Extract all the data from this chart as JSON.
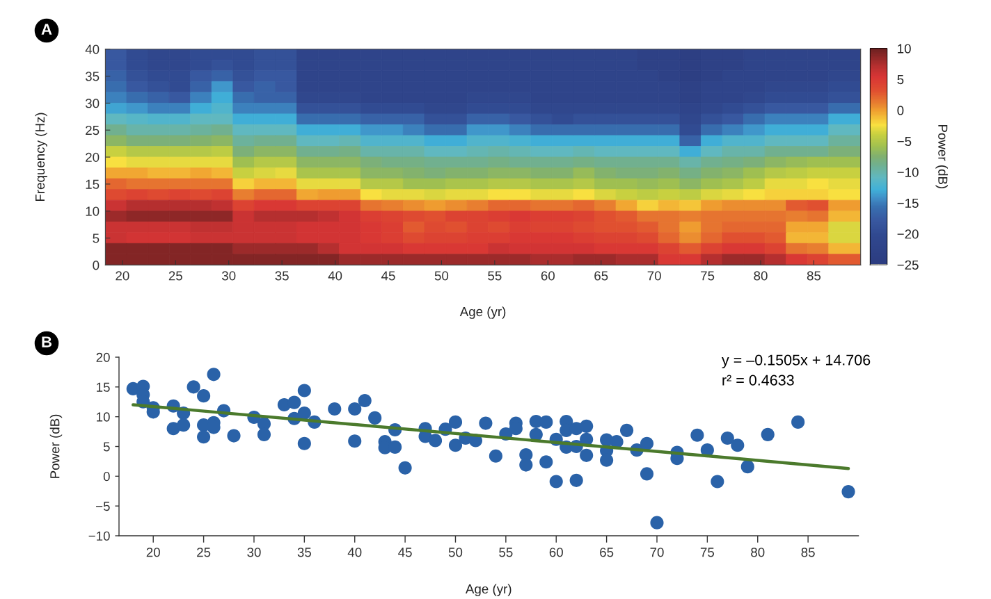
{
  "chart_data": [
    {
      "type": "heatmap",
      "title": "A",
      "xlabel": "Age (yr)",
      "ylabel": "Frequency (Hz)",
      "clabel": "Power (dB)",
      "x": [
        19.4,
        21.4,
        23.4,
        25.4,
        27.4,
        29.4,
        31.4,
        33.4,
        35.4,
        37.4,
        39.4,
        41.4,
        43.4,
        45.4,
        47.4,
        49.4,
        51.4,
        53.4,
        55.4,
        57.4,
        59.4,
        61.4,
        63.4,
        65.4,
        67.4,
        69.4,
        71.4,
        73.4,
        75.4,
        77.4,
        79.4,
        81.4,
        83.4,
        85.4,
        87.9
      ],
      "xlim": [
        18.4,
        89.4
      ],
      "xticks": [
        20,
        25,
        30,
        35,
        40,
        45,
        50,
        55,
        60,
        65,
        70,
        75,
        80,
        85
      ],
      "ylim": [
        0,
        40
      ],
      "yticks": [
        0,
        5,
        10,
        15,
        20,
        25,
        30,
        35,
        40
      ],
      "clim": [
        -25,
        10
      ],
      "cticks": [
        10,
        5,
        0,
        -5,
        -10,
        -15,
        -20,
        -25
      ],
      "cells": [
        [
          -18,
          -20,
          -21,
          -21,
          -20,
          -20,
          -20,
          -19,
          -19,
          -22,
          -22,
          -22,
          -22,
          -22,
          -22,
          -22,
          -22,
          -22,
          -22,
          -22,
          -22,
          -22,
          -22,
          -22,
          -22,
          -23,
          -23,
          -24,
          -23,
          -23,
          -22,
          -22,
          -22,
          -22,
          -22
        ],
        [
          -18,
          -20,
          -21,
          -21,
          -20,
          -19,
          -20,
          -19,
          -19,
          -22,
          -22,
          -22,
          -22,
          -22,
          -22,
          -22,
          -22,
          -22,
          -22,
          -22,
          -22,
          -22,
          -22,
          -22,
          -22,
          -23,
          -23,
          -24,
          -23,
          -23,
          -22,
          -22,
          -22,
          -22,
          -22
        ],
        [
          -17,
          -19,
          -20,
          -20,
          -18,
          -17,
          -19,
          -18,
          -18,
          -22,
          -22,
          -22,
          -22,
          -22,
          -22,
          -22,
          -22,
          -22,
          -22,
          -22,
          -22,
          -22,
          -22,
          -22,
          -22,
          -22,
          -23,
          -24,
          -23,
          -22,
          -22,
          -22,
          -22,
          -22,
          -21
        ],
        [
          -16,
          -18,
          -19,
          -20,
          -17,
          -14,
          -18,
          -17,
          -18,
          -22,
          -22,
          -22,
          -22,
          -22,
          -22,
          -22,
          -22,
          -22,
          -22,
          -22,
          -22,
          -22,
          -22,
          -22,
          -22,
          -22,
          -22,
          -23,
          -22,
          -22,
          -22,
          -21,
          -21,
          -21,
          -20
        ],
        [
          -15,
          -16,
          -17,
          -18,
          -15,
          -13,
          -16,
          -17,
          -17,
          -21,
          -21,
          -21,
          -22,
          -22,
          -22,
          -22,
          -22,
          -21,
          -21,
          -21,
          -22,
          -22,
          -22,
          -22,
          -22,
          -22,
          -22,
          -23,
          -22,
          -22,
          -21,
          -20,
          -20,
          -20,
          -19
        ],
        [
          -13.5,
          -14,
          -15,
          -15,
          -13,
          -12,
          -15,
          -15,
          -15,
          -19,
          -19,
          -19,
          -20,
          -20,
          -20,
          -21,
          -21,
          -20,
          -20,
          -20,
          -21,
          -21,
          -21,
          -21,
          -21,
          -21,
          -21,
          -22,
          -21,
          -20,
          -19,
          -18,
          -18,
          -18,
          -16
        ],
        [
          -11,
          -11.5,
          -12,
          -12,
          -11,
          -11,
          -13,
          -13,
          -13,
          -16,
          -16,
          -16,
          -17,
          -17,
          -17,
          -19,
          -19,
          -17,
          -17,
          -18,
          -19,
          -20,
          -19,
          -19,
          -19,
          -19,
          -19,
          -21,
          -19,
          -18,
          -16,
          -15,
          -15,
          -15,
          -13
        ],
        [
          -9,
          -10,
          -10,
          -10,
          -9.5,
          -9,
          -11,
          -11,
          -11,
          -13,
          -13,
          -13,
          -14,
          -14,
          -15,
          -16,
          -16,
          -14,
          -14,
          -15,
          -16,
          -16,
          -16,
          -16,
          -16,
          -16,
          -16,
          -20,
          -16,
          -15,
          -14,
          -13,
          -13,
          -13,
          -11
        ],
        [
          -7,
          -8,
          -8,
          -8,
          -7.5,
          -7,
          -9.5,
          -9,
          -9,
          -11,
          -11,
          -10.5,
          -12,
          -12,
          -12,
          -13,
          -13,
          -12,
          -12,
          -12.5,
          -13,
          -13,
          -13,
          -13,
          -13,
          -13,
          -13,
          -17,
          -13,
          -12,
          -12,
          -11,
          -11,
          -11,
          -9.5
        ],
        [
          -4,
          -5,
          -5,
          -5,
          -5,
          -4.5,
          -8,
          -7,
          -7,
          -9,
          -9,
          -8.5,
          -10,
          -10,
          -10,
          -11,
          -11,
          -10.5,
          -10,
          -10.5,
          -11,
          -11,
          -10.5,
          -11,
          -11,
          -11,
          -11,
          -13,
          -11,
          -10,
          -10,
          -9,
          -9,
          -9,
          -8
        ],
        [
          -2.5,
          -3,
          -3,
          -3,
          -3,
          -3,
          -6,
          -5,
          -5,
          -7,
          -7,
          -7,
          -8,
          -8.5,
          -8.5,
          -9,
          -9,
          -9,
          -8.5,
          -9,
          -9,
          -9,
          -8.5,
          -9,
          -9,
          -9,
          -9,
          -10,
          -9,
          -8.5,
          -8,
          -7,
          -6.5,
          -6,
          -6
        ],
        [
          -0.5,
          -0.5,
          -1,
          -1,
          -0.5,
          -1,
          -4,
          -3.5,
          -3,
          -5.5,
          -5.5,
          -5.5,
          -7,
          -7,
          -7.5,
          -8,
          -7.5,
          -7.5,
          -7,
          -7,
          -7.5,
          -7.5,
          -6.5,
          -7.5,
          -8,
          -8,
          -7.5,
          -8.5,
          -7.5,
          -7,
          -6,
          -5,
          -4.5,
          -4,
          -4
        ],
        [
          2,
          1.5,
          1.5,
          1.5,
          1.5,
          1.5,
          -2,
          -1,
          -1,
          -3,
          -3,
          -3,
          -5,
          -5,
          -6,
          -6,
          -5.5,
          -5.5,
          -5,
          -5,
          -5.5,
          -5.5,
          -5,
          -6,
          -6,
          -6.5,
          -6,
          -7,
          -6,
          -5.5,
          -4.5,
          -3,
          -3,
          -2.5,
          -3
        ],
        [
          3.5,
          4,
          3.5,
          4,
          3.5,
          4,
          1,
          2,
          2,
          -0.5,
          0,
          0,
          -2.5,
          -3,
          -3,
          -3.5,
          -3,
          -3,
          -2.5,
          -2.5,
          -3,
          -3,
          -2.5,
          -3.5,
          -4,
          -4.5,
          -4,
          -4.5,
          -3.5,
          -3,
          -2.5,
          -2,
          -2,
          -2,
          -2.5
        ],
        [
          6,
          7,
          7,
          7,
          7,
          6.5,
          4,
          5,
          5,
          4,
          4,
          4,
          1.5,
          1,
          0.5,
          0,
          0.5,
          1,
          2,
          2,
          1.5,
          1.5,
          2,
          1,
          -0.5,
          -2,
          -1,
          -1.5,
          0,
          0.5,
          0.5,
          0.5,
          2.5,
          3,
          0
        ],
        [
          8,
          8.5,
          8.5,
          8.5,
          8.5,
          8.5,
          6,
          7,
          7,
          7,
          6.5,
          5.5,
          4.5,
          4,
          3.5,
          3,
          4,
          4,
          4.5,
          5,
          4.5,
          4.5,
          4,
          3,
          2.5,
          1.5,
          1.5,
          1,
          1.5,
          1.5,
          1.5,
          1.5,
          1,
          1.5,
          -1
        ],
        [
          6,
          6,
          6,
          6,
          6.5,
          6.5,
          6,
          6,
          6,
          5.5,
          5.5,
          5.5,
          5,
          4.5,
          2.5,
          3.5,
          3,
          4,
          3.5,
          4.5,
          4,
          4,
          3.5,
          3,
          3,
          2.5,
          1.5,
          0,
          1.5,
          2,
          2,
          2,
          -0.5,
          -0.5,
          -3.5
        ],
        [
          6,
          5.5,
          5.5,
          5.5,
          6,
          6,
          6,
          6,
          6,
          5.5,
          5.5,
          5.5,
          5,
          4.5,
          3.5,
          4,
          4,
          4.5,
          4.5,
          5,
          5,
          5,
          4.5,
          4,
          4,
          3.5,
          2,
          0.5,
          2,
          3,
          3,
          2.5,
          -1,
          -1,
          -3.5
        ],
        [
          9,
          9,
          9,
          9,
          9,
          9,
          8,
          8,
          8,
          8,
          7,
          5.5,
          5.5,
          5.5,
          5,
          5,
          5,
          5,
          6,
          5.5,
          5.5,
          5.5,
          5.5,
          5,
          5,
          5,
          4,
          2.5,
          4,
          5,
          5,
          4,
          1.5,
          1,
          -1
        ],
        [
          9,
          9,
          9,
          9,
          9,
          9,
          9,
          9,
          9,
          9,
          9,
          8,
          8,
          8,
          8,
          8,
          8,
          8,
          8,
          8,
          7.5,
          7.5,
          8,
          8,
          7.5,
          7.5,
          5,
          5,
          7,
          8,
          8,
          7,
          5,
          4,
          2.5
        ]
      ]
    },
    {
      "type": "scatter",
      "title": "B",
      "xlabel": "Age (yr)",
      "ylabel": "Power (dB)",
      "xlim": [
        16.6,
        90
      ],
      "xticks": [
        20,
        25,
        30,
        35,
        40,
        45,
        50,
        55,
        60,
        65,
        70,
        75,
        80,
        85
      ],
      "ylim": [
        -10,
        20
      ],
      "yticks": [
        -10,
        -5,
        0,
        5,
        10,
        15,
        20
      ],
      "annotations": [
        "y = –0.1505x + 14.706",
        "r² = 0.4633"
      ],
      "series": [
        {
          "type": "scatter",
          "color": "#2a62a8",
          "marker": "circle",
          "x": [
            18,
            19,
            19,
            19,
            20,
            20,
            22,
            22,
            23,
            23,
            24,
            25,
            25,
            25,
            26,
            26,
            26,
            27,
            28,
            30,
            31,
            31,
            33,
            34,
            34,
            35,
            35,
            35,
            36,
            38,
            40,
            40,
            41,
            42,
            43,
            43,
            44,
            44,
            45,
            47,
            47,
            48,
            49,
            50,
            50,
            51,
            52,
            53,
            54,
            55,
            56,
            56,
            57,
            57,
            58,
            58,
            59,
            59,
            60,
            60,
            61,
            61,
            61,
            62,
            62,
            62,
            63,
            63,
            63,
            65,
            65,
            65,
            66,
            67,
            68,
            69,
            69,
            70,
            72,
            72,
            74,
            75,
            76,
            77,
            78,
            79,
            81,
            84,
            89
          ],
          "values": [
            14.7,
            15.1,
            13.7,
            12.5,
            11.5,
            10.8,
            11.8,
            8.0,
            10.6,
            8.6,
            15.0,
            13.5,
            8.6,
            6.6,
            17.1,
            9.0,
            8.2,
            11.0,
            6.8,
            9.9,
            8.8,
            7.0,
            12.0,
            12.4,
            9.7,
            14.4,
            10.6,
            5.5,
            9.1,
            11.3,
            11.3,
            5.9,
            12.7,
            9.8,
            5.8,
            4.8,
            7.8,
            4.9,
            1.4,
            8.0,
            6.7,
            6.0,
            7.9,
            9.1,
            5.2,
            6.4,
            6.0,
            8.9,
            3.4,
            7.1,
            8.9,
            8.0,
            3.6,
            1.9,
            9.2,
            7.0,
            9.1,
            2.4,
            6.2,
            -0.9,
            9.2,
            7.7,
            4.9,
            8.0,
            5.0,
            -0.7,
            8.4,
            6.2,
            3.5,
            6.1,
            4.3,
            2.7,
            5.8,
            7.7,
            4.4,
            5.5,
            0.4,
            -7.8,
            4.0,
            3.0,
            6.9,
            4.4,
            -0.9,
            6.4,
            5.2,
            1.6,
            7.0,
            9.1,
            -2.6
          ]
        },
        {
          "type": "line",
          "color": "#4b7a2c",
          "x": [
            18,
            89
          ],
          "values": [
            12.0,
            1.3
          ]
        }
      ]
    }
  ]
}
